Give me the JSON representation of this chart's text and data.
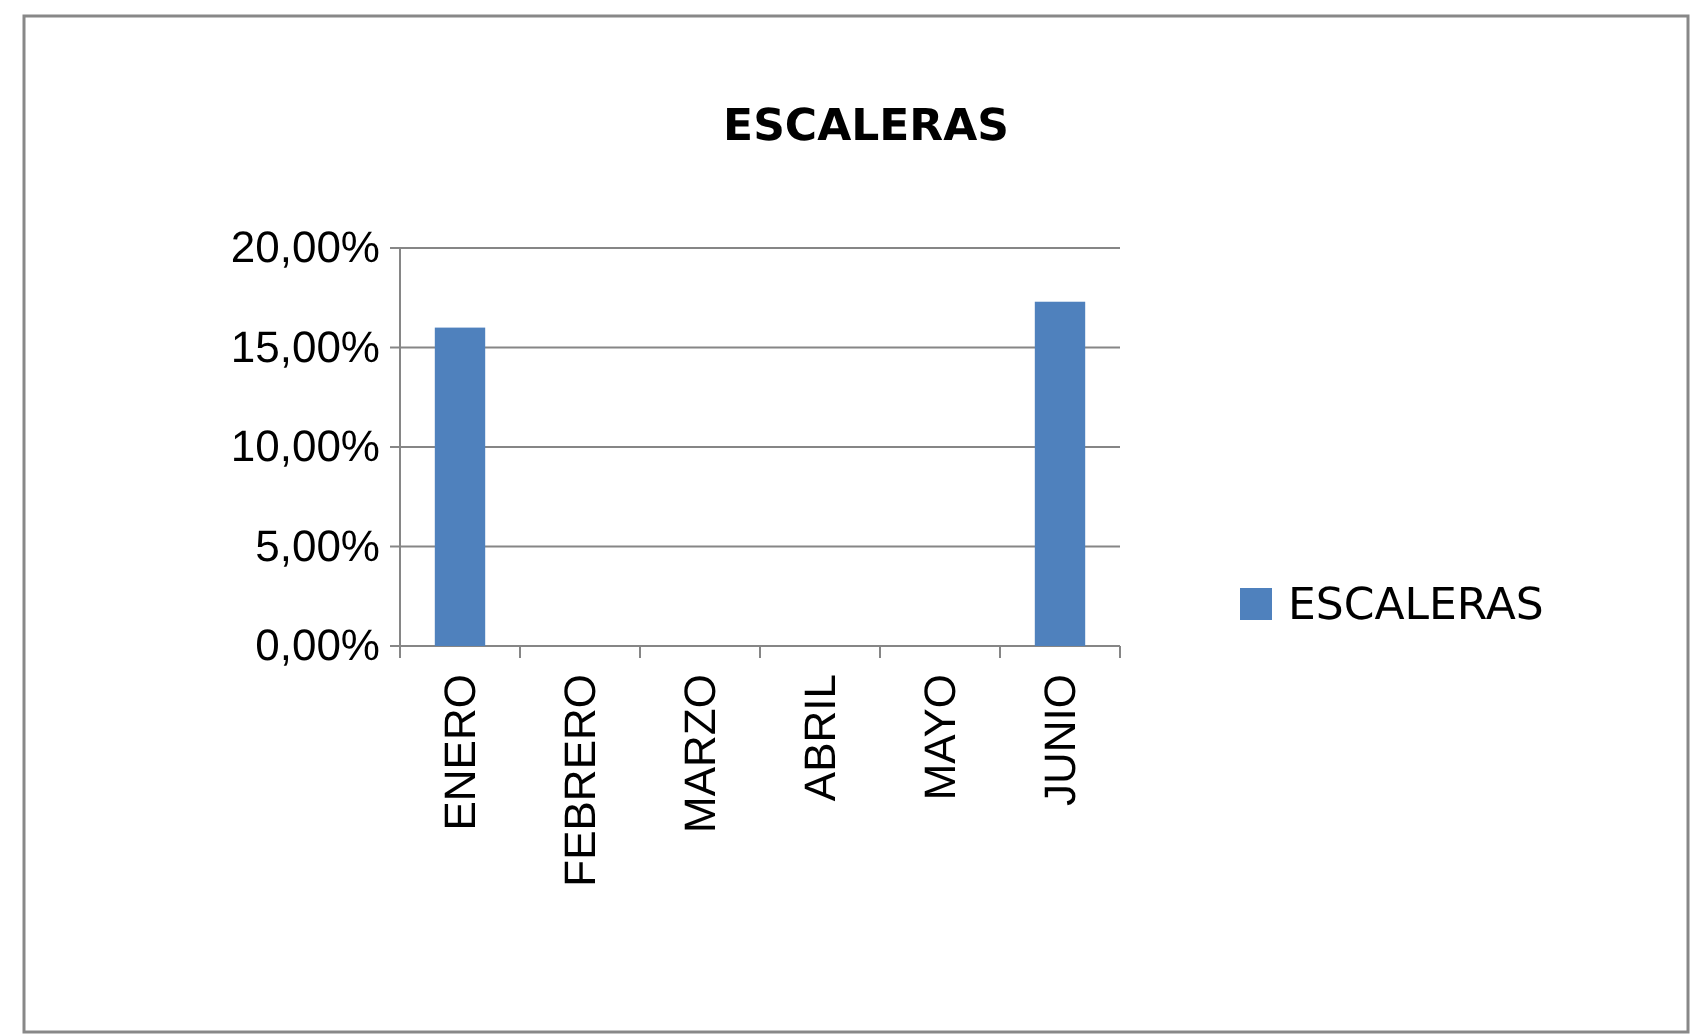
{
  "chart_data": {
    "type": "bar",
    "title": "ESCALERAS",
    "categories": [
      "ENERO",
      "FEBRERO",
      "MARZO",
      "ABRIL",
      "MAYO",
      "JUNIO"
    ],
    "series": [
      {
        "name": "ESCALERAS",
        "color": "#4f81bd",
        "values": [
          16.0,
          null,
          null,
          null,
          null,
          17.3
        ]
      }
    ],
    "ylim": [
      0,
      20
    ],
    "yticks": [
      {
        "value": 0,
        "label": "0,00%"
      },
      {
        "value": 5,
        "label": "5,00%"
      },
      {
        "value": 10,
        "label": "10,00%"
      },
      {
        "value": 15,
        "label": "15,00%"
      },
      {
        "value": 20,
        "label": "20,00%"
      }
    ],
    "grid": "y",
    "legend": "right"
  }
}
